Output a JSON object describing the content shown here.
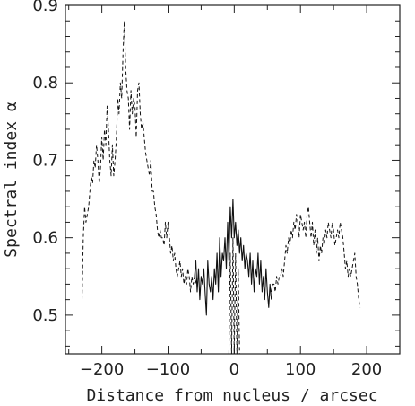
{
  "chart_data": {
    "type": "line",
    "xlabel": "Distance from nucleus / arcsec",
    "ylabel": "Spectral index α",
    "xlim": [
      -255,
      250
    ],
    "ylim": [
      0.45,
      0.9
    ],
    "xticks": [
      -200,
      -100,
      0,
      100,
      200
    ],
    "xtick_labels": [
      "−200",
      "−100",
      "0",
      "100",
      "200"
    ],
    "yticks": [
      0.5,
      0.6,
      0.7,
      0.8,
      0.9
    ],
    "ytick_labels": [
      "0.5",
      "0.6",
      "0.7",
      "0.8",
      "0.9"
    ],
    "grid": false,
    "series": [
      {
        "style": "dashed",
        "x": [
          -230,
          -228,
          -226,
          -224,
          -222,
          -220,
          -218,
          -216,
          -214,
          -212,
          -210,
          -208,
          -206,
          -204,
          -202,
          -200,
          -198,
          -196,
          -194,
          -192,
          -190,
          -188,
          -186,
          -184,
          -182,
          -180,
          -178,
          -176,
          -174,
          -172,
          -170,
          -168,
          -166,
          -164,
          -162,
          -160,
          -158,
          -156,
          -154,
          -152,
          -150,
          -148,
          -146,
          -144,
          -142,
          -140,
          -138,
          -136,
          -134,
          -132,
          -130,
          -128,
          -126,
          -124,
          -122,
          -120,
          -118,
          -116,
          -114,
          -112,
          -110,
          -108,
          -106,
          -104,
          -102,
          -100,
          -98,
          -96,
          -94,
          -92,
          -90,
          -88,
          -86,
          -84,
          -82,
          -80,
          -78,
          -76,
          -74,
          -72,
          -70,
          -68,
          -66,
          -64,
          -62,
          -60,
          -58,
          -56
        ],
        "y": [
          0.52,
          0.6,
          0.64,
          0.62,
          0.63,
          0.64,
          0.66,
          0.68,
          0.67,
          0.7,
          0.69,
          0.72,
          0.7,
          0.67,
          0.69,
          0.73,
          0.7,
          0.74,
          0.72,
          0.77,
          0.74,
          0.7,
          0.68,
          0.72,
          0.68,
          0.7,
          0.73,
          0.78,
          0.76,
          0.8,
          0.78,
          0.84,
          0.88,
          0.82,
          0.79,
          0.78,
          0.74,
          0.79,
          0.76,
          0.78,
          0.77,
          0.73,
          0.79,
          0.8,
          0.76,
          0.74,
          0.75,
          0.73,
          0.71,
          0.7,
          0.69,
          0.68,
          0.7,
          0.66,
          0.66,
          0.64,
          0.63,
          0.61,
          0.6,
          0.61,
          0.6,
          0.6,
          0.59,
          0.62,
          0.6,
          0.62,
          0.6,
          0.58,
          0.59,
          0.57,
          0.58,
          0.56,
          0.55,
          0.56,
          0.57,
          0.55,
          0.56,
          0.54,
          0.55,
          0.54,
          0.56,
          0.55,
          0.53,
          0.55,
          0.54,
          0.55,
          0.54,
          0.55
        ]
      },
      {
        "style": "solid",
        "x": [
          -60,
          -58,
          -56,
          -54,
          -52,
          -50,
          -48,
          -46,
          -44,
          -42,
          -40,
          -38,
          -36,
          -34,
          -32,
          -30,
          -28,
          -26,
          -24,
          -22,
          -20,
          -18,
          -16,
          -14,
          -12,
          -10,
          -8,
          -6,
          -4,
          -2,
          0,
          2,
          4,
          6,
          8,
          10,
          12,
          14,
          16,
          18,
          20,
          22,
          24,
          26,
          28,
          30,
          32,
          34,
          36,
          38,
          40,
          42,
          44,
          46,
          48,
          50,
          52,
          54,
          56
        ],
        "y": [
          0.55,
          0.57,
          0.53,
          0.56,
          0.52,
          0.55,
          0.54,
          0.56,
          0.53,
          0.5,
          0.57,
          0.54,
          0.53,
          0.55,
          0.52,
          0.56,
          0.54,
          0.58,
          0.53,
          0.6,
          0.55,
          0.58,
          0.57,
          0.6,
          0.56,
          0.62,
          0.57,
          0.64,
          0.6,
          0.65,
          0.6,
          0.62,
          0.59,
          0.61,
          0.58,
          0.6,
          0.57,
          0.59,
          0.56,
          0.58,
          0.57,
          0.55,
          0.58,
          0.54,
          0.57,
          0.53,
          0.56,
          0.55,
          0.58,
          0.54,
          0.57,
          0.53,
          0.55,
          0.52,
          0.56,
          0.53,
          0.51,
          0.54,
          0.52
        ]
      },
      {
        "style": "dashed",
        "x": [
          56,
          58,
          60,
          62,
          64,
          66,
          68,
          70,
          72,
          74,
          76,
          78,
          80,
          82,
          84,
          86,
          88,
          90,
          92,
          94,
          96,
          98,
          100,
          102,
          104,
          106,
          108,
          110,
          112,
          114,
          116,
          118,
          120,
          122,
          124,
          126,
          128,
          130,
          132,
          134,
          136,
          138,
          140,
          142,
          144,
          146,
          148,
          150,
          152,
          154,
          156,
          158,
          160,
          162,
          164,
          166,
          168,
          170,
          172,
          174,
          176,
          178,
          180,
          182,
          184,
          186,
          188,
          190
        ],
        "y": [
          0.53,
          0.54,
          0.54,
          0.53,
          0.55,
          0.54,
          0.55,
          0.55,
          0.56,
          0.55,
          0.57,
          0.59,
          0.58,
          0.6,
          0.59,
          0.61,
          0.6,
          0.62,
          0.61,
          0.63,
          0.62,
          0.6,
          0.63,
          0.62,
          0.61,
          0.62,
          0.6,
          0.63,
          0.64,
          0.62,
          0.6,
          0.62,
          0.59,
          0.61,
          0.58,
          0.6,
          0.57,
          0.59,
          0.58,
          0.6,
          0.59,
          0.61,
          0.6,
          0.62,
          0.61,
          0.6,
          0.62,
          0.61,
          0.59,
          0.6,
          0.61,
          0.6,
          0.62,
          0.61,
          0.6,
          0.58,
          0.56,
          0.57,
          0.55,
          0.56,
          0.55,
          0.56,
          0.57,
          0.58,
          0.55,
          0.54,
          0.52,
          0.51
        ]
      },
      {
        "style": "dashed",
        "x": [
          -8,
          -6,
          -4,
          -2,
          0,
          2,
          4,
          6,
          8
        ],
        "y": [
          0.45,
          0.58,
          0.45,
          0.6,
          0.45,
          0.58,
          0.45,
          0.56,
          0.45
        ]
      }
    ]
  }
}
